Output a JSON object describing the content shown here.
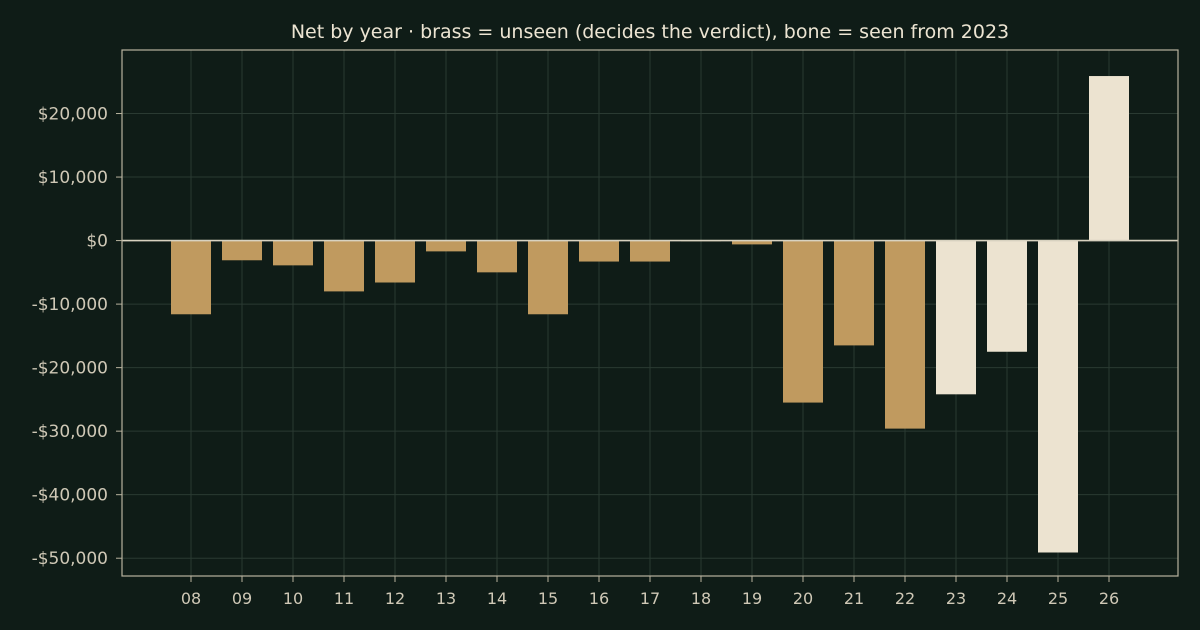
{
  "chart_data": {
    "type": "bar",
    "title": "Net by year  ·  brass = unseen (decides the verdict), bone = seen from 2023",
    "xlabel": "",
    "ylabel": "",
    "categories": [
      "08",
      "09",
      "10",
      "11",
      "12",
      "13",
      "14",
      "15",
      "16",
      "17",
      "18",
      "19",
      "20",
      "21",
      "22",
      "23",
      "24",
      "25",
      "26"
    ],
    "values": [
      -11600,
      -3100,
      -3900,
      -8000,
      -6600,
      -1700,
      -5000,
      -11600,
      -3300,
      -3300,
      -100,
      -600,
      -25500,
      -16500,
      -29600,
      -24200,
      -17500,
      -49100,
      25900
    ],
    "groups": [
      "unseen",
      "unseen",
      "unseen",
      "unseen",
      "unseen",
      "unseen",
      "unseen",
      "unseen",
      "unseen",
      "unseen",
      "unseen",
      "unseen",
      "unseen",
      "unseen",
      "unseen",
      "seen",
      "seen",
      "seen",
      "seen"
    ],
    "yticks": [
      20000,
      10000,
      0,
      -10000,
      -20000,
      -30000,
      -40000,
      -50000
    ],
    "ytick_labels": [
      "$20,000",
      "$10,000",
      "$0",
      "-$10,000",
      "-$20,000",
      "-$30,000",
      "-$40,000",
      "-$50,000"
    ],
    "ylim": [
      -52800,
      30000
    ],
    "grid": true,
    "legend": "none",
    "colors": {
      "background": "#0f1c17",
      "unseen": "#c09a5f",
      "seen": "#ece3d0",
      "axis": "#b8b29e",
      "grid": "#2a3a32",
      "zero_line": "#d8d2c0"
    }
  }
}
